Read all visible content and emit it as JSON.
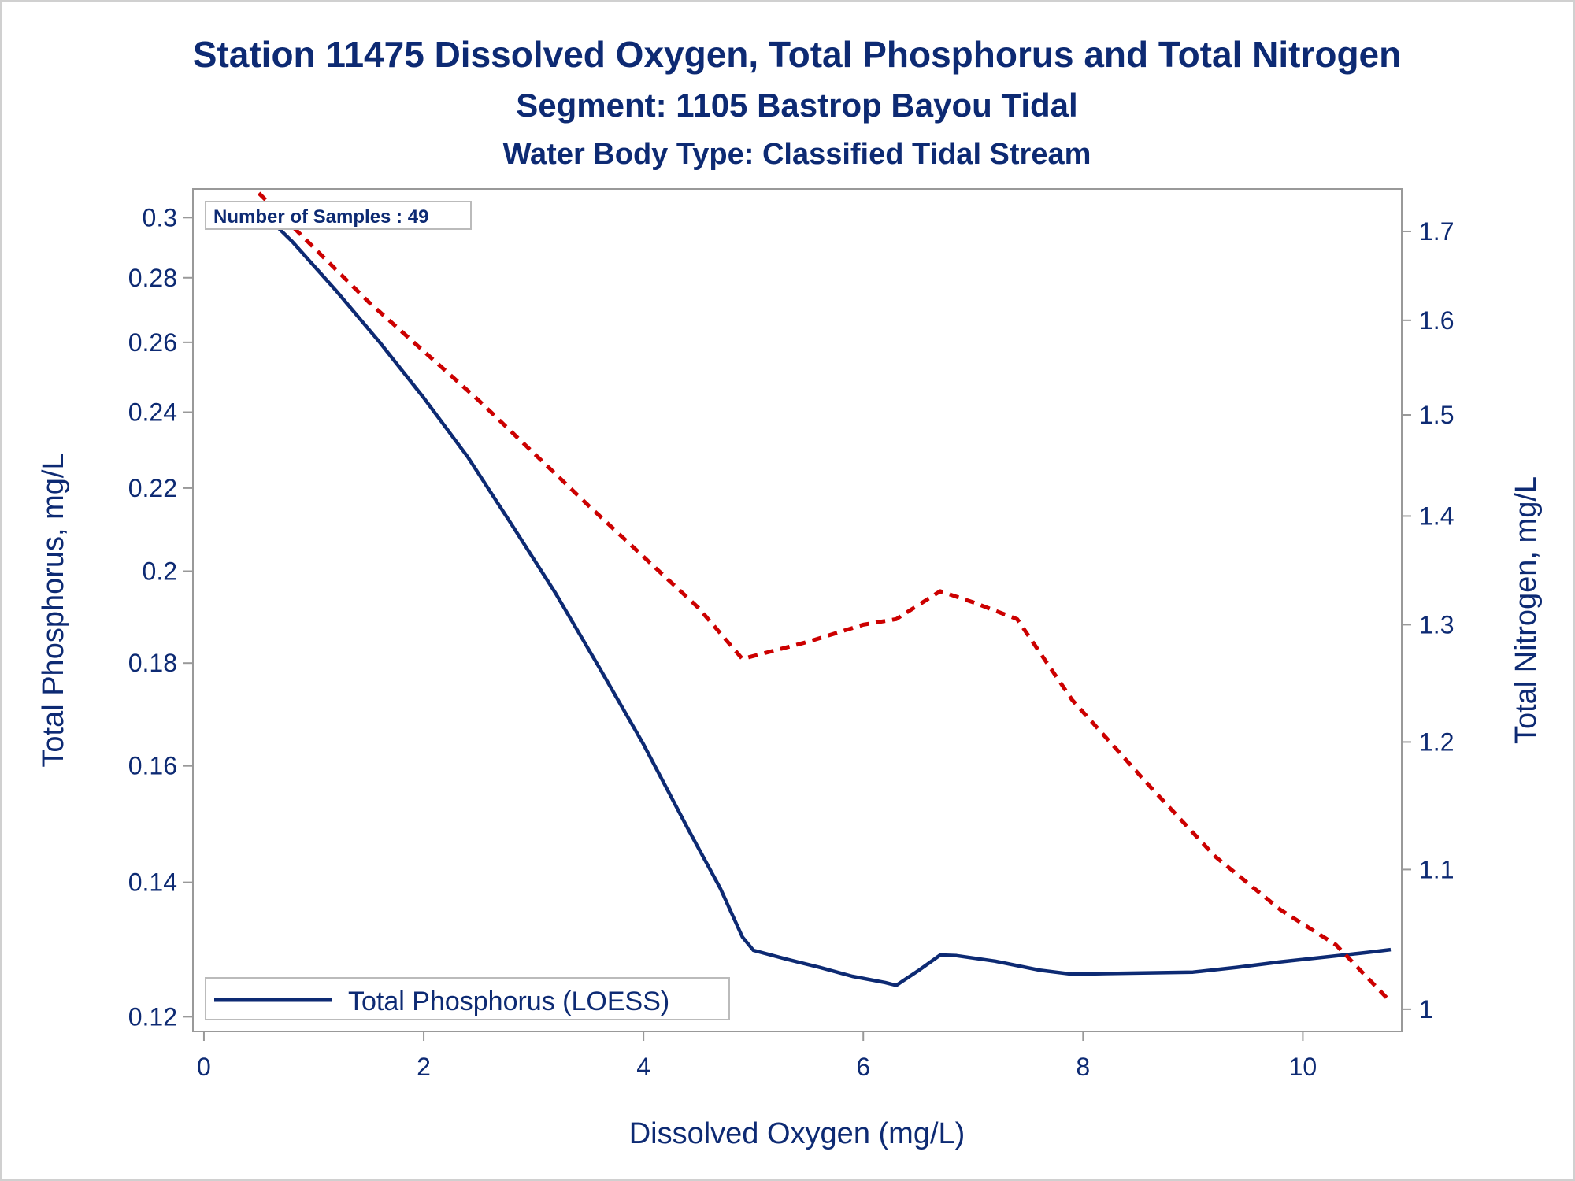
{
  "chart_data": {
    "type": "line",
    "title": "Station 11475  Dissolved Oxygen, Total Phosphorus and Total Nitrogen",
    "subtitle": "Segment: 1105  Bastrop Bayou Tidal",
    "subtitle2": "Water Body Type: Classified Tidal Stream",
    "xlabel": "Dissolved Oxygen (mg/L)",
    "ylabel": "Total Phosphorus, mg/L",
    "y2label": "Total Nitrogen, mg/L",
    "annotation": "Number of Samples : 49",
    "xlim": [
      -0.1,
      10.9
    ],
    "ylim": [
      0.118,
      0.31
    ],
    "y2lim": [
      0.985,
      1.75
    ],
    "y_scale": "log",
    "y2_scale": "log",
    "grid": false,
    "legend_position": "bottom-left",
    "x_ticks": [
      "0",
      "2",
      "4",
      "6",
      "8",
      "10"
    ],
    "y_ticks": [
      "0.12",
      "0.14",
      "0.16",
      "0.18",
      "0.2",
      "0.22",
      "0.24",
      "0.26",
      "0.28",
      "0.3"
    ],
    "y2_ticks": [
      "1",
      "1.1",
      "1.2",
      "1.3",
      "1.4",
      "1.5",
      "1.6",
      "1.7"
    ],
    "series": [
      {
        "name": "Total Phosphorus (LOESS)",
        "axis": "left",
        "color": "#0d2a73",
        "style": "solid",
        "x": [
          0.5,
          0.8,
          1.2,
          1.6,
          2.0,
          2.4,
          2.8,
          3.2,
          3.6,
          4.0,
          4.4,
          4.7,
          4.9,
          5.0,
          5.3,
          5.6,
          5.9,
          6.2,
          6.3,
          6.5,
          6.7,
          6.85,
          7.2,
          7.6,
          7.9,
          8.2,
          8.6,
          9.0,
          9.4,
          9.8,
          10.2,
          10.6,
          10.8
        ],
        "y": [
          0.303,
          0.292,
          0.276,
          0.26,
          0.244,
          0.228,
          0.211,
          0.195,
          0.179,
          0.164,
          0.149,
          0.139,
          0.1315,
          0.1295,
          0.1282,
          0.127,
          0.1257,
          0.1248,
          0.1244,
          0.1265,
          0.1288,
          0.1287,
          0.1279,
          0.1266,
          0.126,
          0.1261,
          0.1262,
          0.1263,
          0.127,
          0.1278,
          0.1285,
          0.1292,
          0.1296
        ]
      },
      {
        "name": "Total Nitrogen",
        "axis": "right",
        "color": "#cc0000",
        "style": "dashed",
        "x": [
          0.5,
          1.5,
          2.5,
          3.5,
          4.5,
          4.9,
          5.5,
          6.0,
          6.3,
          6.7,
          7.0,
          7.4,
          7.9,
          8.6,
          9.2,
          9.8,
          10.3,
          10.8
        ],
        "y": [
          1.745,
          1.62,
          1.515,
          1.41,
          1.315,
          1.27,
          1.285,
          1.3,
          1.305,
          1.33,
          1.32,
          1.305,
          1.235,
          1.165,
          1.11,
          1.07,
          1.045,
          1.005
        ]
      }
    ]
  }
}
